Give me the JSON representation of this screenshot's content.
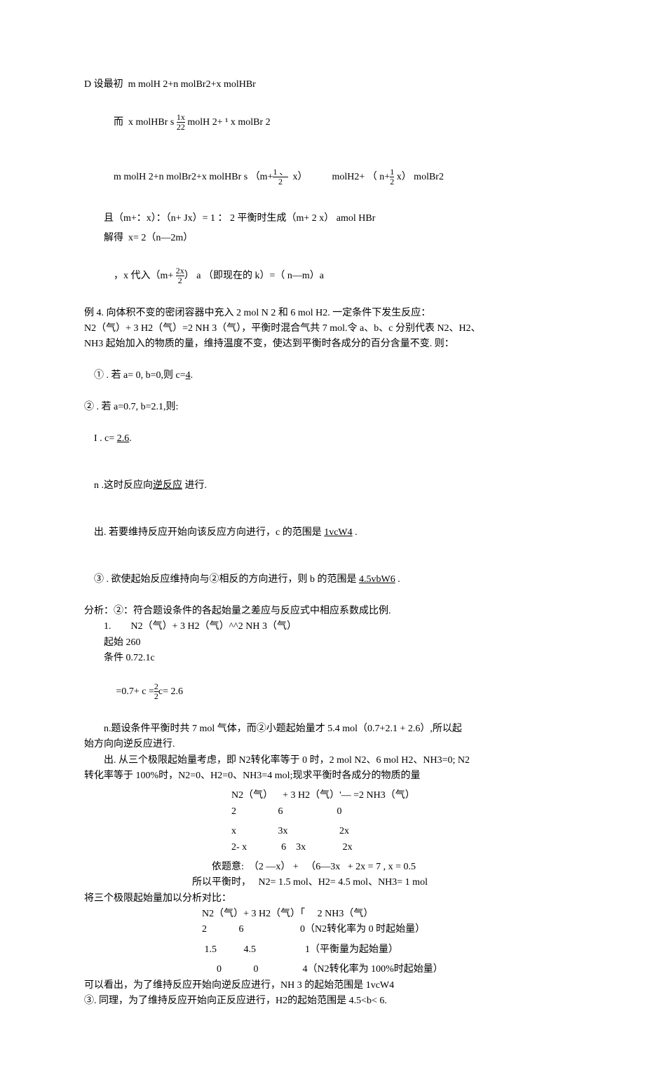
{
  "colors": {
    "text": "#000000",
    "bg": "#ffffff"
  },
  "font": {
    "family": "SimSun",
    "size_pt": 10.5
  },
  "p1": "D 设最初  m molH 2+n molBr2+x molHBr",
  "p2_pre": "而  x molHBr s ",
  "p2_frac_n": "1x",
  "p2_frac_d": "22",
  "p2_post": " molH 2+ ¹ x molBr 2",
  "p3_pre": "m molH 2+n molBr2+x molHBr s （m+",
  "p3_frac_n": "1 、",
  "p3_frac_d": "2",
  "p3_mid": "  x）",
  "p3_right": "molH2+ （ n+",
  "p3_fracR_n": "1",
  "p3_fracR_d": "2",
  "p3_end": " x） molBr2",
  "p4": "且（m+：x）：（n+ Jx）= 1 ： 2 平衡时生成（m+ 2 x） amol HBr",
  "p5": "解得  x= 2（n—2m）",
  "p6_pre": "，x 代入（m+ ",
  "p6_frac_n": "2x",
  "p6_frac_d": "2",
  "p6_post": "） a （即现在的 k）=（ n—m）a",
  "p7": "例 4. 向体积不变的密闭容器中充入 2 mol N 2 和 6 mol H2. 一定条件下发生反应：",
  "p8": "N2（气）+ 3 H2（气）=2 NH 3（气），平衡时混合气共 7 mol.令 a、b、c 分别代表 N2、H2、",
  "p9": "NH3 起始加入的物质的量，维持温度不变，使达到平衡时各成分的百分含量不变. 则：",
  "p10_pre": "① . 若 a= 0, b=0,则 c=",
  "p10_und": "4",
  "p10_post": ".",
  "p11": "② . 若 a=0.7, b=2.1,则:",
  "p12_pre": "I . c= ",
  "p12_und": "2.6",
  "p12_post": ".",
  "p13_pre": "n .这时反应向",
  "p13_und": "逆反应",
  "p13_post": " 进行.",
  "p14_pre": "出. 若要维持反应开始向该反应方向进行，c 的范围是 ",
  "p14_und": "1vcW4",
  "p14_post": " .",
  "p15_pre": "③ . 欲使起始反应维持向与②相反的方向进行，则 b 的范围是 ",
  "p15_und": "4.5vbW6",
  "p15_post": " .",
  "p16": "分析：②：符合题设条件的各起始量之差应与反应式中相应系数成比例.",
  "p17": "1.        N2（气）+ 3 H2（气）^^2 NH 3（气）",
  "p18": "起始 260",
  "p19": "条件 0.72.1c",
  "p20_pre": " =0.7+ c =",
  "p20_frac_n": "2",
  "p20_frac_d": "2",
  "p20_post": "c= 2.6",
  "p21": "n.题设条件平衡时共 7 mol 气体，而②小题起始量才 5.4 mol（0.7+2.1 + 2.6）,所以起",
  "p22": "始方向向逆反应进行.",
  "p23": "出. 从三个极限起始量考虑，即 N2转化率等于 0 时，2 mol N2、6 mol H2、NH3=0; N2",
  "p24": "转化率等于 100%时，N2=0、H2=0、NH3=4 mol;现求平衡时各成分的物质的量",
  "t1r1": "N2（气）    + 3 H2（气）'— =2 NH3（气）",
  "t1r2": "2                 6                      0",
  "t1r3": "x                 3x                     2x",
  "t1r4": "2- x              6    3x               2x",
  "p25": "依题意:  （2 —x） +   （6—3x   + 2x = 7 , x = 0.5",
  "p26": "所以平衡时，   N2= 1.5 mol、H2= 4.5 mol、NH3= 1 mol",
  "p27": "将三个极限起始量加以分析对比：",
  "t2r1": "N2（气）+ 3 H2（气）「     2 NH3（气）",
  "t2r2": "2             6                       0（N2转化率为 0 时起始量）",
  "t2r3": " 1.5           4.5                    1（平衡量为起始量）",
  "t2r4": "      0             0                  4（N2转化率为 100%时起始量）",
  "p28": "可以看出，为了维持反应开始向逆反应进行，NH 3 的起始范围是 1vcW4",
  "p29": "③. 同理，为了维持反应开始向正反应进行，H2的起始范围是 4.5<b< 6."
}
